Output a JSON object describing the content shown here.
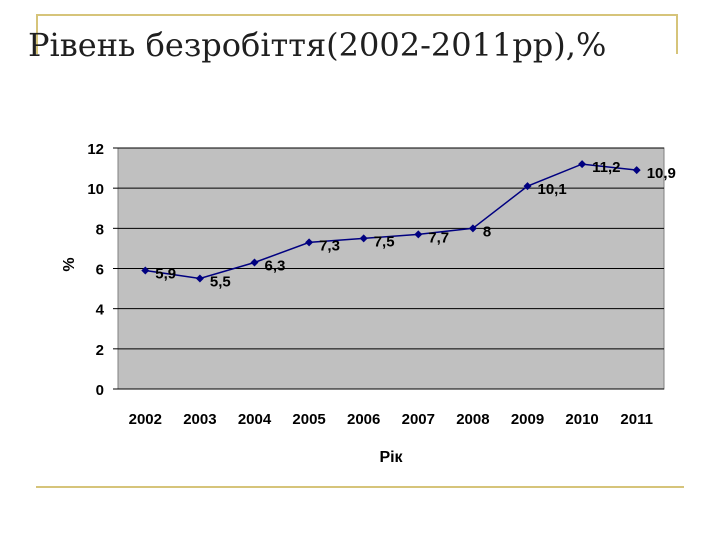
{
  "slide": {
    "title": "Рівень безробіття(2002-2011рр),%"
  },
  "colors": {
    "plot_background": "#c0c0c0",
    "series_line": "#000080",
    "gridline": "#000000",
    "rule": "#d6c47a"
  },
  "chart_data": {
    "type": "line",
    "title": "",
    "xlabel": "Рік",
    "ylabel": "%",
    "categories": [
      "2002",
      "2003",
      "2004",
      "2005",
      "2006",
      "2007",
      "2008",
      "2009",
      "2010",
      "2011"
    ],
    "series": [
      {
        "values": [
          5.9,
          5.5,
          6.3,
          7.3,
          7.5,
          7.7,
          8,
          10.1,
          11.2,
          10.9
        ],
        "data_labels": [
          "5,9",
          "5,5",
          "6,3",
          "7,3",
          "7,5",
          "7,7",
          "8",
          "10,1",
          "11,2",
          "10,9"
        ]
      }
    ],
    "ylim": [
      0,
      12
    ],
    "yticks": [
      0,
      2,
      4,
      6,
      8,
      10,
      12
    ],
    "grid": true,
    "legend": "none",
    "marker": "diamond"
  }
}
